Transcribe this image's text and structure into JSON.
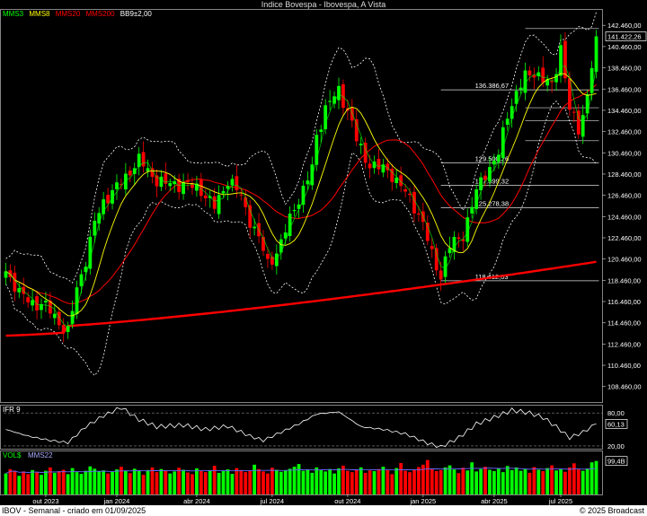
{
  "title": "Indice Bovespa - Ibovespa, A Vista",
  "legend": [
    {
      "label": "MMS3",
      "color": "#00ff00"
    },
    {
      "label": "MMS8",
      "color": "#ffff00"
    },
    {
      "label": "MMS20",
      "color": "#ff0000"
    },
    {
      "label": "MMS200",
      "color": "#ff0000"
    },
    {
      "label": "BB9±2,00",
      "color": "#ffffff"
    }
  ],
  "colors": {
    "up": "#00ff00",
    "down": "#ff0000",
    "mms3": "#00ff00",
    "mms8": "#ffff00",
    "mms20": "#ff0000",
    "mms200": "#ff0000",
    "bands": "#ffffff"
  },
  "chart_data": [
    {
      "type": "candlestick",
      "name": "price",
      "ylim": [
        107000,
        144000
      ],
      "yticks": [
        "142.460,00",
        "140.460,00",
        "138.460,00",
        "136.460,00",
        "134.460,00",
        "132.460,00",
        "130.460,00",
        "128.460,00",
        "126.460,00",
        "124.460,00",
        "122.460,00",
        "120.460,00",
        "118.460,00",
        "116.460,00",
        "114.460,00",
        "112.460,00",
        "110.460,00",
        "108.460,00"
      ],
      "last_price_label": "141.422,26",
      "last_price": 141422,
      "fibonacci_levels": [
        {
          "label": "136.386,67",
          "value": 136387
        },
        {
          "label": "129.500,26",
          "value": 129500
        },
        {
          "label": "127.399,32",
          "value": 127399
        },
        {
          "label": "125.278,38",
          "value": 125278
        },
        {
          "label": "118.412,03",
          "value": 118412
        }
      ],
      "close_anchors": [
        [
          0,
          119300
        ],
        [
          3,
          117200
        ],
        [
          6,
          116500
        ],
        [
          9,
          115800
        ],
        [
          12,
          114800
        ],
        [
          14,
          113500
        ],
        [
          16,
          117500
        ],
        [
          18,
          120500
        ],
        [
          20,
          124000
        ],
        [
          22,
          125700
        ],
        [
          25,
          127300
        ],
        [
          28,
          128800
        ],
        [
          30,
          129600
        ],
        [
          33,
          128500
        ],
        [
          36,
          127300
        ],
        [
          40,
          127700
        ],
        [
          44,
          126800
        ],
        [
          47,
          125500
        ],
        [
          50,
          127800
        ],
        [
          53,
          126400
        ],
        [
          57,
          122200
        ],
        [
          59,
          120000
        ],
        [
          62,
          122000
        ],
        [
          65,
          125200
        ],
        [
          67,
          127000
        ],
        [
          69,
          129200
        ],
        [
          70,
          132000
        ],
        [
          72,
          134500
        ],
        [
          75,
          136500
        ],
        [
          77,
          134500
        ],
        [
          79,
          131500
        ],
        [
          81,
          130000
        ],
        [
          84,
          129000
        ],
        [
          87,
          128400
        ],
        [
          89,
          127500
        ],
        [
          92,
          125300
        ],
        [
          94,
          123700
        ],
        [
          96,
          121000
        ],
        [
          98,
          118900
        ],
        [
          100,
          121500
        ],
        [
          103,
          123000
        ],
        [
          106,
          126600
        ],
        [
          108,
          128600
        ],
        [
          111,
          130400
        ],
        [
          113,
          134000
        ],
        [
          115,
          136000
        ],
        [
          117,
          137800
        ],
        [
          119,
          138100
        ],
        [
          121,
          137100
        ],
        [
          123,
          136900
        ],
        [
          125,
          140600
        ],
        [
          127,
          134300
        ],
        [
          129,
          132700
        ],
        [
          131,
          136000
        ],
        [
          133,
          141422
        ]
      ],
      "x_labels": [
        {
          "label": "out 2023",
          "i": 9
        },
        {
          "label": "jan 2024",
          "i": 25
        },
        {
          "label": "abr 2024",
          "i": 43
        },
        {
          "label": "jul 2024",
          "i": 60
        },
        {
          "label": "out 2024",
          "i": 77
        },
        {
          "label": "jan 2025",
          "i": 94
        },
        {
          "label": "abr 2025",
          "i": 110
        },
        {
          "label": "jul 2025",
          "i": 125
        }
      ]
    },
    {
      "type": "line",
      "name": "IFR 9",
      "ylim": [
        15,
        95
      ],
      "yticks": [
        "80,00",
        "20,00"
      ],
      "last_value_label": "60,13",
      "last_value": 60.13,
      "anchors": [
        [
          0,
          50
        ],
        [
          5,
          38
        ],
        [
          10,
          30
        ],
        [
          14,
          26
        ],
        [
          18,
          55
        ],
        [
          22,
          75
        ],
        [
          26,
          90
        ],
        [
          30,
          68
        ],
        [
          34,
          55
        ],
        [
          40,
          58
        ],
        [
          45,
          50
        ],
        [
          50,
          56
        ],
        [
          55,
          38
        ],
        [
          58,
          30
        ],
        [
          62,
          45
        ],
        [
          66,
          60
        ],
        [
          70,
          78
        ],
        [
          75,
          82
        ],
        [
          80,
          55
        ],
        [
          85,
          50
        ],
        [
          90,
          42
        ],
        [
          95,
          25
        ],
        [
          98,
          18
        ],
        [
          102,
          35
        ],
        [
          106,
          60
        ],
        [
          110,
          72
        ],
        [
          114,
          85
        ],
        [
          118,
          80
        ],
        [
          121,
          72
        ],
        [
          124,
          55
        ],
        [
          127,
          35
        ],
        [
          130,
          45
        ],
        [
          133,
          60.13
        ]
      ]
    },
    {
      "type": "bar",
      "name": "VOL$",
      "overlay": "MMS22",
      "ylim": [
        0,
        1.3
      ],
      "last_value_label": "99,4B",
      "last_value": 0.99,
      "values": [
        0.62,
        0.75,
        0.7,
        0.55,
        0.68,
        0.6,
        0.72,
        0.66,
        0.58,
        0.7,
        0.8,
        0.64,
        0.69,
        0.73,
        0.6,
        0.78,
        0.66,
        0.61,
        0.7,
        0.83,
        0.76,
        0.68,
        0.71,
        0.62,
        0.67,
        0.74,
        0.82,
        0.7,
        0.63,
        0.76,
        0.69,
        0.58,
        0.72,
        0.8,
        0.66,
        0.75,
        0.7,
        0.62,
        0.68,
        0.79,
        0.73,
        0.65,
        0.6,
        0.77,
        0.7,
        0.66,
        0.72,
        0.85,
        0.64,
        0.69,
        0.74,
        0.61,
        0.78,
        0.72,
        0.66,
        0.7,
        0.88,
        0.75,
        0.68,
        0.62,
        0.79,
        0.73,
        0.67,
        0.71,
        0.76,
        0.82,
        0.9,
        0.7,
        0.74,
        0.64,
        0.8,
        0.72,
        0.68,
        0.75,
        0.62,
        0.77,
        0.85,
        0.7,
        0.66,
        0.73,
        0.8,
        0.64,
        0.71,
        0.69,
        0.75,
        0.82,
        0.72,
        0.6,
        0.78,
        0.93,
        0.7,
        0.66,
        0.74,
        0.81,
        0.88,
        1.02,
        0.76,
        0.69,
        0.72,
        0.8,
        0.86,
        0.74,
        0.63,
        0.79,
        0.71,
        0.95,
        0.68,
        0.75,
        0.82,
        0.73,
        0.69,
        0.77,
        0.66,
        0.84,
        0.72,
        0.8,
        0.7,
        0.76,
        0.64,
        0.81,
        0.73,
        0.69,
        0.78,
        0.86,
        0.71,
        0.75,
        0.67,
        0.8,
        0.92,
        0.74,
        0.7,
        0.77,
        0.95,
        0.99
      ]
    }
  ],
  "mms22_label": "MMS22",
  "footer": {
    "left": "IBOV - Semanal - criado em 01/09/2025",
    "right": "© 2025 Broadcast"
  }
}
